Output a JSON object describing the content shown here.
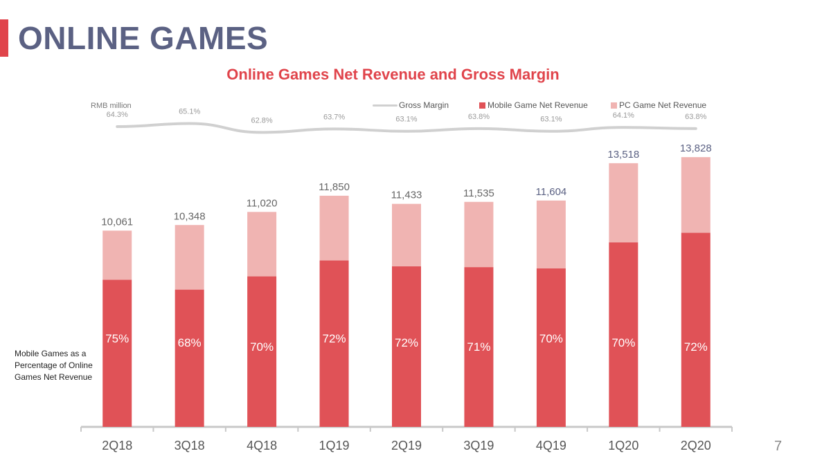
{
  "header": {
    "title": "ONLINE GAMES",
    "accent_color": "#e0444b",
    "title_color": "#5b6183"
  },
  "chart_title": "Online Games Net Revenue and Gross Margin",
  "unit_label": "RMB million",
  "side_note": "Mobile Games as a Percentage of Online Games Net Revenue",
  "page_number": "7",
  "chart_data": {
    "type": "bar",
    "stacked": true,
    "title": "Online Games Net Revenue and Gross Margin",
    "ylabel": "RMB million",
    "xlabel": "",
    "ylim": [
      0,
      15500
    ],
    "categories": [
      "2Q18",
      "3Q18",
      "4Q18",
      "1Q19",
      "2Q19",
      "3Q19",
      "4Q19",
      "1Q20",
      "2Q20"
    ],
    "totals": [
      10061,
      10348,
      11020,
      11850,
      11433,
      11535,
      11604,
      13518,
      13828
    ],
    "total_labels": [
      "10,061",
      "10,348",
      "11,020",
      "11,850",
      "11,433",
      "11,535",
      "11,604",
      "13,518",
      "13,828"
    ],
    "mobile_pct_labels": [
      "75%",
      "68%",
      "70%",
      "72%",
      "72%",
      "71%",
      "70%",
      "70%",
      "72%"
    ],
    "series": [
      {
        "name": "Mobile Game Net Revenue",
        "color": "#e05257",
        "values": [
          7546,
          7037,
          7714,
          8532,
          8232,
          8190,
          8123,
          9463,
          9956
        ]
      },
      {
        "name": "PC Game Net Revenue",
        "color": "#f0b4b2",
        "values": [
          2515,
          3311,
          3306,
          3318,
          3201,
          3345,
          3481,
          4055,
          3872
        ]
      }
    ],
    "line": {
      "name": "Gross Margin",
      "color": "#d0d0d0",
      "values": [
        64.3,
        65.1,
        62.8,
        63.7,
        63.1,
        63.8,
        63.1,
        64.1,
        63.8
      ],
      "labels": [
        "64.3%",
        "65.1%",
        "62.8%",
        "63.7%",
        "63.1%",
        "63.8%",
        "63.1%",
        "64.1%",
        "63.8%"
      ],
      "range": [
        55,
        72
      ]
    },
    "legend": [
      "Gross Margin",
      "Mobile Game Net Revenue",
      "PC Game Net Revenue"
    ],
    "legend_position": "top-right"
  }
}
